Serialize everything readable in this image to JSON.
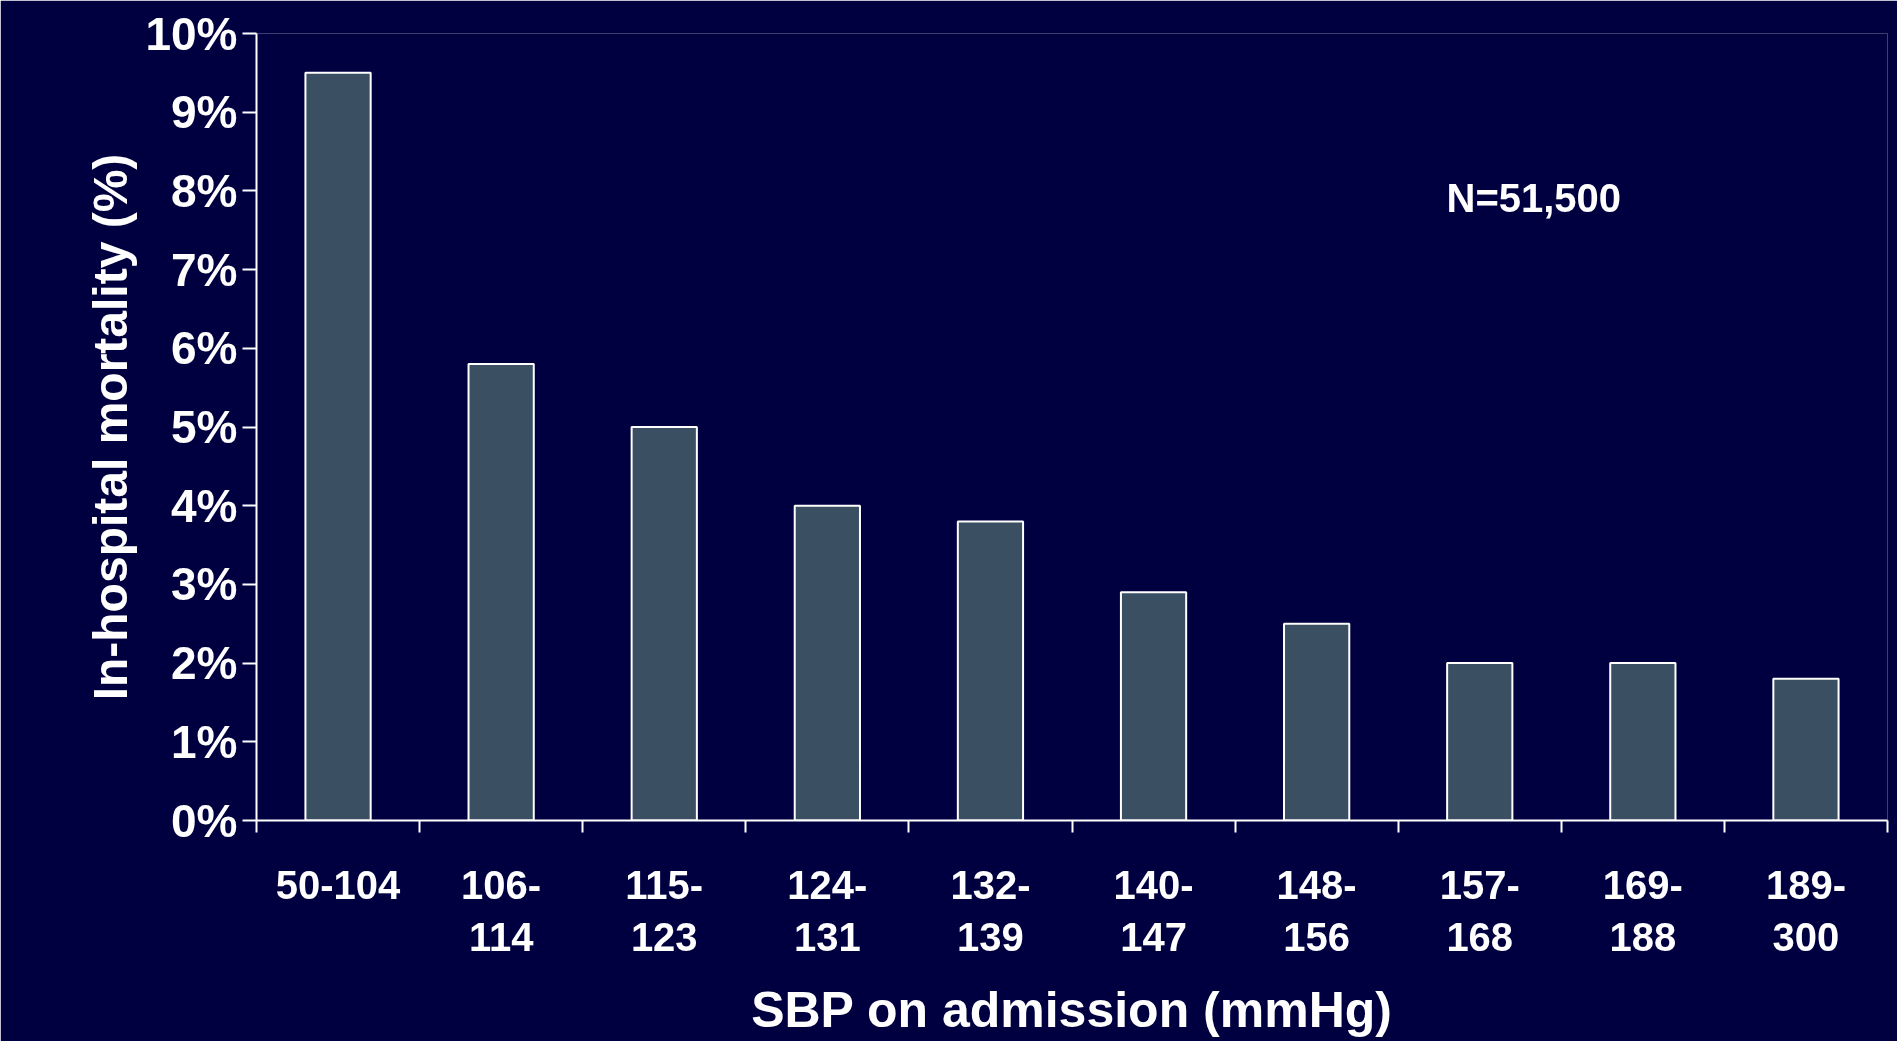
{
  "chart_data": {
    "type": "bar",
    "categories": [
      "50-104",
      "106-\n114",
      "115-\n123",
      "124-\n131",
      "132-\n139",
      "140-\n147",
      "148-\n156",
      "157-\n168",
      "169-\n188",
      "189-\n300"
    ],
    "values": [
      9.5,
      5.8,
      5.0,
      4.0,
      3.8,
      2.9,
      2.5,
      2.0,
      2.0,
      1.8
    ],
    "color": "#3b4f63",
    "xlabel": "SBP on admission (mmHg)",
    "ylabel": "In-hospital mortality (%)",
    "ylim": [
      0,
      10
    ],
    "yticks": [
      {
        "value": 0,
        "label": "0%"
      },
      {
        "value": 1,
        "label": "1%"
      },
      {
        "value": 2,
        "label": "2%"
      },
      {
        "value": 3,
        "label": "3%"
      },
      {
        "value": 4,
        "label": "4%"
      },
      {
        "value": 5,
        "label": "5%"
      },
      {
        "value": 6,
        "label": "6%"
      },
      {
        "value": 7,
        "label": "7%"
      },
      {
        "value": 8,
        "label": "8%"
      },
      {
        "value": 9,
        "label": "9%"
      },
      {
        "value": 10,
        "label": "10%"
      }
    ],
    "annotations": [
      "N=51,500"
    ],
    "grid": false
  }
}
